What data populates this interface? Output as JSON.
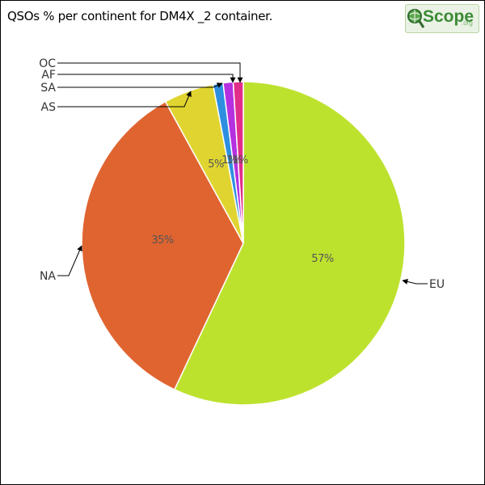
{
  "title": "QSOs % per continent for DM4X _2 container.",
  "logo": {
    "icon": "magnifier-globe-icon",
    "text": "Scope",
    "suffix": ".org",
    "accent": "#3c8a36"
  },
  "chart_data": {
    "type": "pie",
    "title": "QSOs % per continent for DM4X _2 container.",
    "start": "12 o'clock",
    "direction": "clockwise",
    "slices": [
      {
        "label": "EU",
        "value": 57,
        "percent_label": "57%",
        "color": "#bde22e"
      },
      {
        "label": "NA",
        "value": 35,
        "percent_label": "35%",
        "color": "#e06430"
      },
      {
        "label": "AS",
        "value": 5,
        "percent_label": "5%",
        "color": "#e0d530"
      },
      {
        "label": "SA",
        "value": 1,
        "percent_label": "1%",
        "color": "#2e8fe0"
      },
      {
        "label": "AF",
        "value": 1,
        "percent_label": "1%",
        "color": "#b530e0"
      },
      {
        "label": "OC",
        "value": 1,
        "percent_label": "1%",
        "color": "#e02e8a"
      }
    ]
  }
}
